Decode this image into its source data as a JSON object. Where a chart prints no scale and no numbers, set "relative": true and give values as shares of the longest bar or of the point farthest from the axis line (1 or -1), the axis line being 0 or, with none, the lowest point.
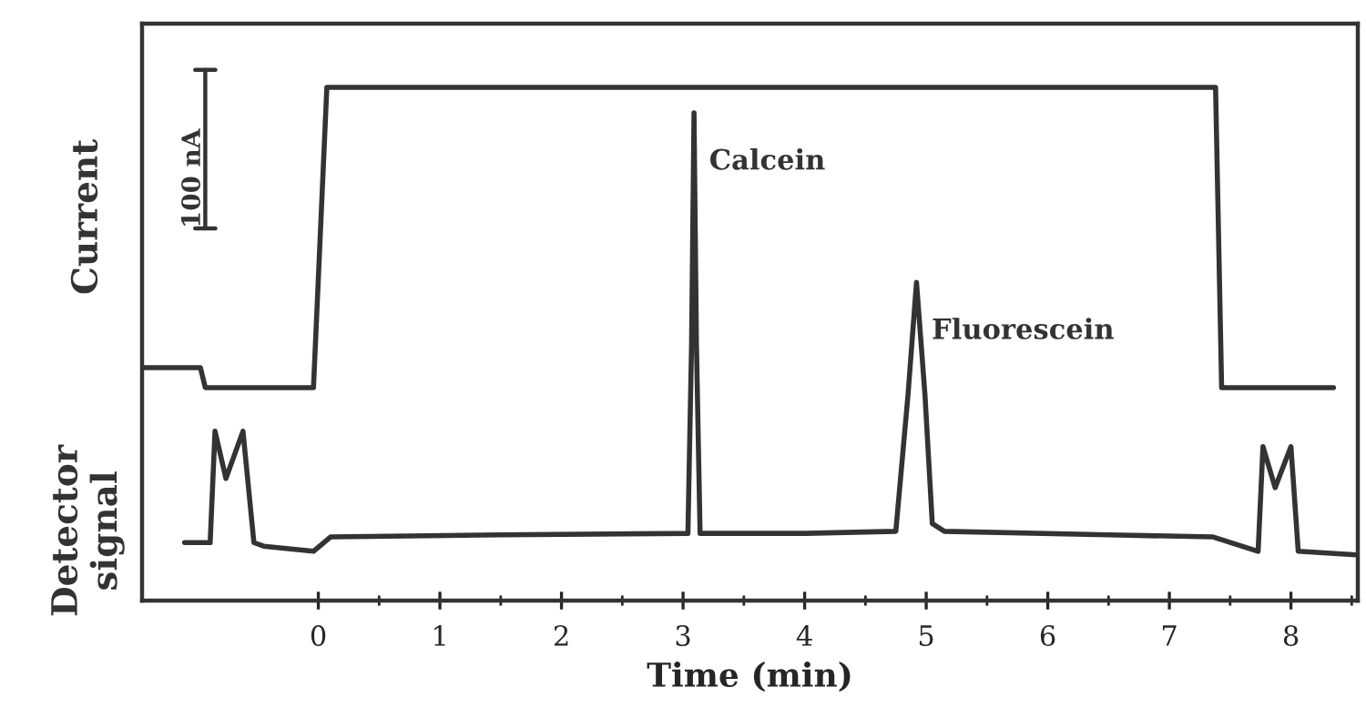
{
  "chart_data": {
    "type": "line",
    "relative": true,
    "xlabel": "Time (min)",
    "xlim": [
      -1.45,
      8.55
    ],
    "xticks": [
      0,
      1,
      2,
      3,
      4,
      5,
      6,
      7,
      8
    ],
    "grid": false,
    "legend": false,
    "marker": "none",
    "line_style": "solid",
    "series": [
      {
        "name": "Current",
        "color": "#333333",
        "x": [
          -1.44,
          -0.97,
          -0.93,
          -0.04,
          0.07,
          7.38,
          7.43,
          8.35
        ],
        "values": [
          0.454,
          0.454,
          0.415,
          0.415,
          1.0,
          1.0,
          0.415,
          0.415
        ]
      },
      {
        "name": "Detector signal",
        "color": "#333333",
        "x": [
          -1.1,
          -0.89,
          -0.85,
          -0.76,
          -0.62,
          -0.53,
          -0.45,
          -0.04,
          0.1,
          1.5,
          3.04,
          3.07,
          3.09,
          3.11,
          3.14,
          3.2,
          4.0,
          4.75,
          4.85,
          4.92,
          4.99,
          5.05,
          5.15,
          6.5,
          7.36,
          7.73,
          7.77,
          7.87,
          8.0,
          8.06,
          8.54
        ],
        "values": [
          0.113,
          0.113,
          0.33,
          0.238,
          0.33,
          0.113,
          0.106,
          0.096,
          0.124,
          0.128,
          0.131,
          0.5,
          0.95,
          0.5,
          0.131,
          0.131,
          0.131,
          0.135,
          0.4,
          0.62,
          0.4,
          0.15,
          0.135,
          0.128,
          0.124,
          0.096,
          0.3,
          0.22,
          0.3,
          0.096,
          0.089
        ]
      }
    ],
    "annotations": [
      "100 nA",
      {
        "text": "Calcein",
        "x": 3.09,
        "y": 0.95
      },
      {
        "text": "Fluorescein",
        "x": 4.92,
        "y": 0.62
      }
    ]
  }
}
